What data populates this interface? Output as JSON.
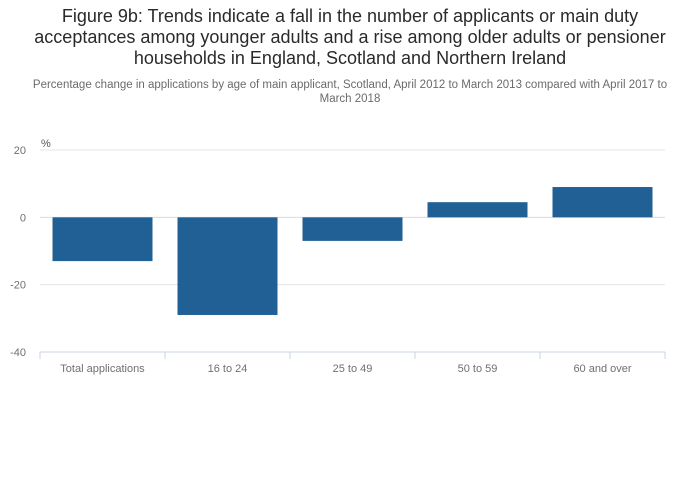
{
  "chart_data": {
    "type": "bar",
    "title": "Figure 9b: Trends indicate a fall in the number of applicants or main duty acceptances among younger adults and a rise among older adults or pensioner households in England, Scotland and Northern Ireland",
    "subtitle": "Percentage change in applications by age of main applicant, Scotland, April 2012 to March 2013 compared with April 2017 to March 2018",
    "ylabel": "%",
    "xlabel": "",
    "categories": [
      "Total applications",
      "16 to 24",
      "25 to 49",
      "50 to 59",
      "60 and over"
    ],
    "values": [
      -13,
      -29,
      -7,
      4.5,
      9
    ],
    "ylim": [
      -40,
      20
    ],
    "yticks": [
      20,
      0,
      -20,
      -40
    ],
    "grid": true,
    "bar_color": "#206095"
  }
}
